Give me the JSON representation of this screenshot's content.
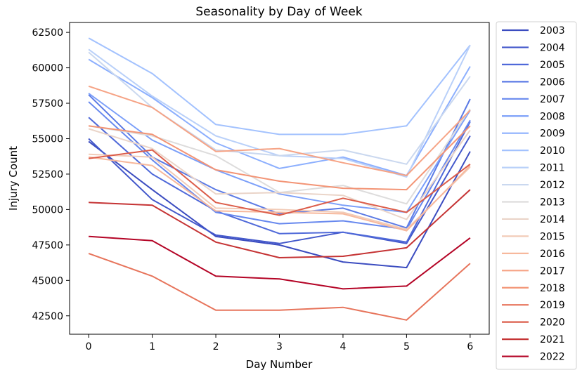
{
  "chart_data": {
    "type": "line",
    "title": "Seasonality by Day of Week",
    "xlabel": "Day Number",
    "ylabel": "Injury Count",
    "x": [
      0,
      1,
      2,
      3,
      4,
      5,
      6
    ],
    "xticks": [
      "0",
      "1",
      "2",
      "3",
      "4",
      "5",
      "6"
    ],
    "yticks": [
      "42500",
      "45000",
      "47500",
      "50000",
      "52500",
      "55000",
      "57500",
      "60000",
      "62500"
    ],
    "xlim": [
      -0.3,
      6.3
    ],
    "ylim": [
      41200,
      63200
    ],
    "grid": false,
    "legend": "outside-right",
    "series": [
      {
        "name": "2003",
        "color": "#3b4cc0",
        "values": [
          54800,
          51400,
          48100,
          47500,
          46300,
          45900,
          54100
        ]
      },
      {
        "name": "2004",
        "color": "#4358cb",
        "values": [
          55000,
          50700,
          48200,
          47600,
          48400,
          47600,
          55200
        ]
      },
      {
        "name": "2005",
        "color": "#4f69d9",
        "values": [
          56500,
          52500,
          49900,
          48300,
          48400,
          47700,
          56200
        ]
      },
      {
        "name": "2006",
        "color": "#5b7ae5",
        "values": [
          58100,
          53700,
          51400,
          49700,
          50100,
          48700,
          57800
        ]
      },
      {
        "name": "2007",
        "color": "#6788ee",
        "values": [
          57600,
          53500,
          49800,
          49000,
          49200,
          48600,
          56300
        ]
      },
      {
        "name": "2008",
        "color": "#7b9ff9",
        "values": [
          58200,
          54900,
          52800,
          51100,
          50300,
          49800,
          57000
        ]
      },
      {
        "name": "2009",
        "color": "#8caffe",
        "values": [
          60600,
          57900,
          54700,
          52900,
          53700,
          52400,
          60100
        ]
      },
      {
        "name": "2010",
        "color": "#a3c2fe",
        "values": [
          62100,
          59600,
          56000,
          55300,
          55300,
          55900,
          61600
        ]
      },
      {
        "name": "2011",
        "color": "#b9d0f9",
        "values": [
          61300,
          58000,
          55200,
          53800,
          53600,
          52300,
          61600
        ]
      },
      {
        "name": "2012",
        "color": "#cad8ef",
        "values": [
          61100,
          57200,
          54200,
          53800,
          54200,
          53200,
          59400
        ]
      },
      {
        "name": "2013",
        "color": "#dddcdc",
        "values": [
          55900,
          55200,
          53800,
          51200,
          51700,
          50400,
          57100
        ]
      },
      {
        "name": "2014",
        "color": "#ead4c8",
        "values": [
          55700,
          54300,
          51100,
          51200,
          51000,
          49300,
          55600
        ]
      },
      {
        "name": "2015",
        "color": "#f2cbb7",
        "values": [
          53900,
          53700,
          50100,
          50000,
          49800,
          48600,
          53000
        ]
      },
      {
        "name": "2016",
        "color": "#f7b89c",
        "values": [
          53700,
          53100,
          49900,
          49800,
          49700,
          48500,
          53100
        ]
      },
      {
        "name": "2017",
        "color": "#f6a385",
        "values": [
          58700,
          57200,
          54100,
          54300,
          53300,
          52400,
          57000
        ]
      },
      {
        "name": "2018",
        "color": "#f39475",
        "values": [
          55900,
          55300,
          52800,
          52000,
          51500,
          51400,
          55900
        ]
      },
      {
        "name": "2019",
        "color": "#e7745b",
        "values": [
          46900,
          45300,
          42900,
          42900,
          43100,
          42200,
          46200
        ]
      },
      {
        "name": "2020",
        "color": "#dc5d4a",
        "values": [
          53600,
          54200,
          50500,
          49600,
          50800,
          49800,
          53200
        ]
      },
      {
        "name": "2021",
        "color": "#c53334",
        "values": [
          50500,
          50300,
          47700,
          46600,
          46700,
          47300,
          51400
        ]
      },
      {
        "name": "2022",
        "color": "#b40426",
        "values": [
          48100,
          47800,
          45300,
          45100,
          44400,
          44600,
          48000
        ]
      }
    ]
  }
}
